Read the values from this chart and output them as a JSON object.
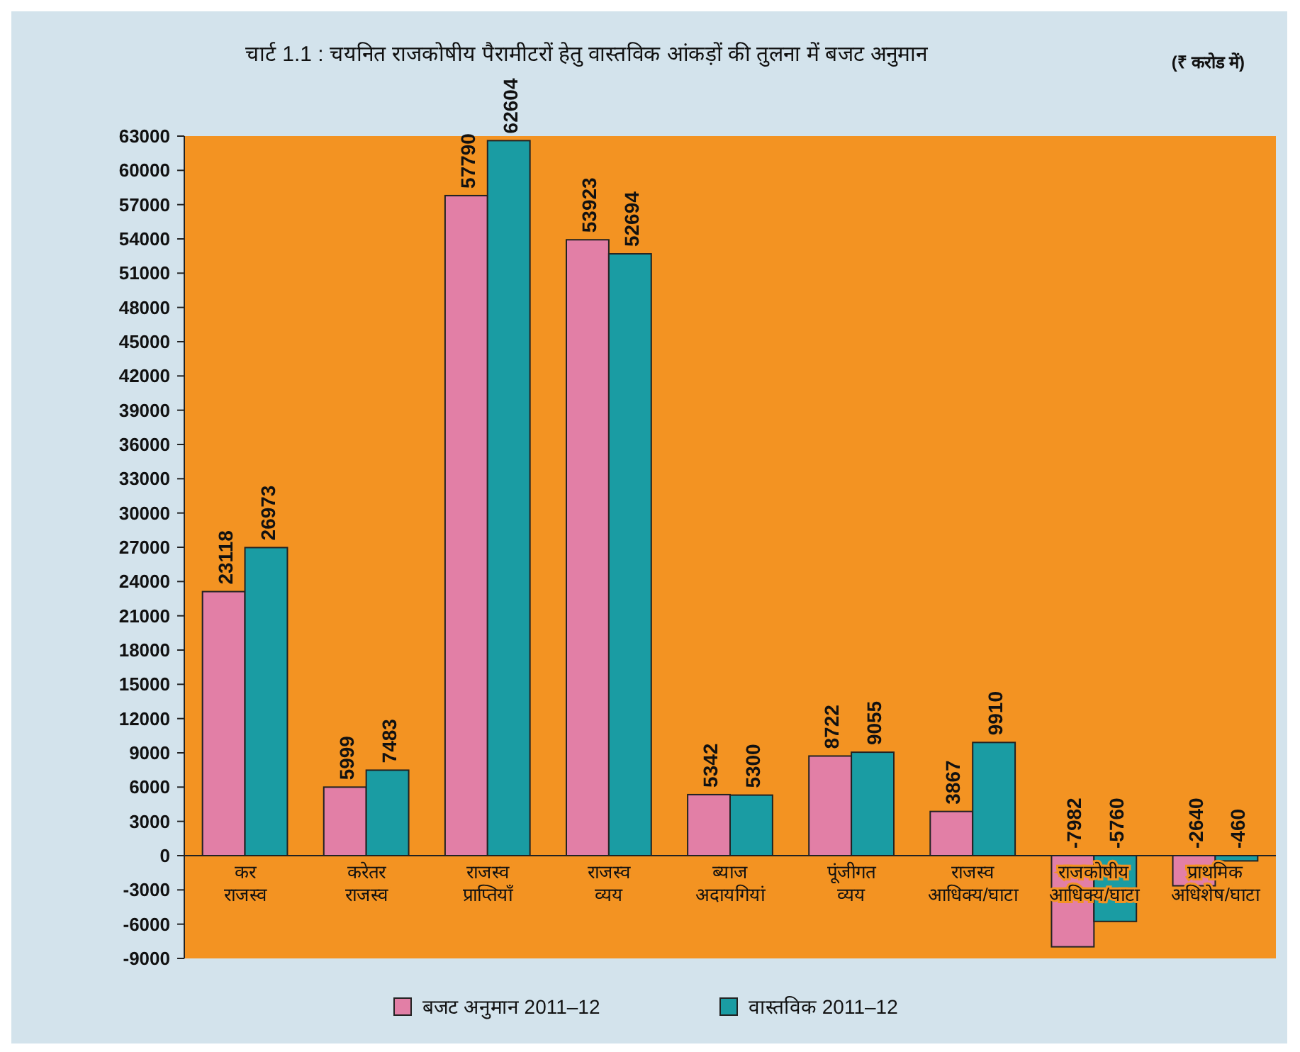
{
  "chart_data": {
    "type": "bar",
    "title": "चार्ट 1.1 :  चयनित राजकोषीय पैरामीटरों हेतु वास्तविक आंकड़ों की तुलना में बजट अनुमान",
    "subtitle": "(₹ करोड में)",
    "categories": [
      "कर राजस्व",
      "करेतर राजस्व",
      "राजस्व प्राप्तियाँ",
      "राजस्व व्यय",
      "ब्याज अदायगियां",
      "पूंजीगत व्यय",
      "राजस्व आधिक्य/घाटा",
      "राजकोषीय आधिक्य/घाटा",
      "प्राथमिक अधिशेष/घाटा"
    ],
    "series": [
      {
        "name": "बजट अनुमान 2011–12",
        "color": "#e27fa6",
        "values": [
          23118,
          5999,
          57790,
          53923,
          5342,
          8722,
          3867,
          -7982,
          -2640
        ]
      },
      {
        "name": "वास्तविक 2011–12",
        "color": "#1a9ca3",
        "values": [
          26973,
          7483,
          62604,
          52694,
          5300,
          9055,
          9910,
          -5760,
          -460
        ]
      }
    ],
    "ylim": [
      -9000,
      63000
    ],
    "yticks": [
      -9000,
      -6000,
      -3000,
      0,
      3000,
      6000,
      9000,
      12000,
      15000,
      18000,
      21000,
      24000,
      27000,
      30000,
      33000,
      36000,
      39000,
      42000,
      45000,
      48000,
      51000,
      54000,
      57000,
      60000,
      63000
    ],
    "data_labels": true,
    "legend": "bottom",
    "grid": false
  }
}
